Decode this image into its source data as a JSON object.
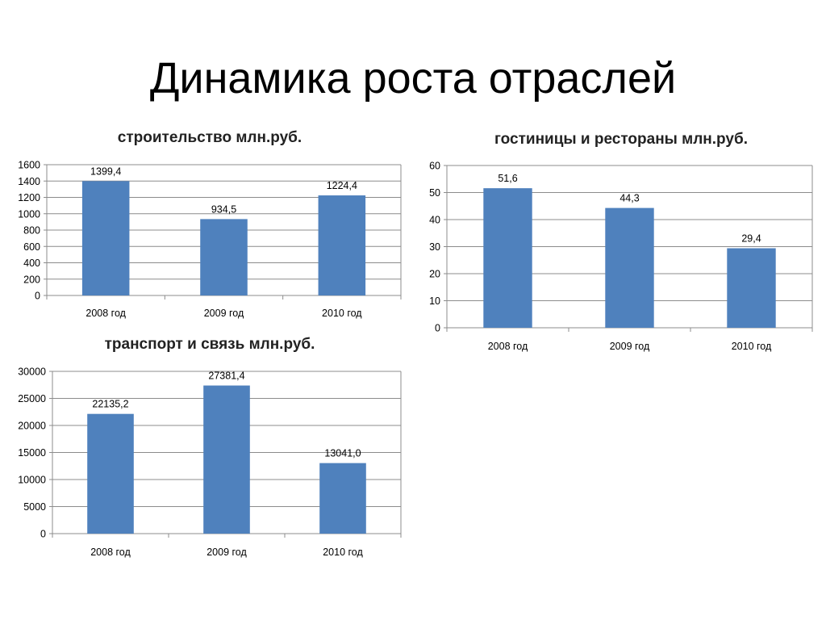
{
  "slide": {
    "title": "Динамика роста отраслей"
  },
  "chart_data": [
    {
      "type": "bar",
      "title": "строительство млн.руб.",
      "categories": [
        "2008 год",
        "2009 год",
        "2010 год"
      ],
      "values": [
        1399.4,
        934.5,
        1224.4
      ],
      "value_labels": [
        "1399,4",
        "934,5",
        "1224,4"
      ],
      "yticks": [
        "0",
        "200",
        "400",
        "600",
        "800",
        "1000",
        "1200",
        "1400",
        "1600"
      ],
      "ylim": [
        0,
        1600
      ],
      "grid": true,
      "bar_color": "#4f81bd"
    },
    {
      "type": "bar",
      "title": "гостиницы и рестораны млн.руб.",
      "categories": [
        "2008 год",
        "2009 год",
        "2010 год"
      ],
      "values": [
        51.6,
        44.3,
        29.4
      ],
      "value_labels": [
        "51,6",
        "44,3",
        "29,4"
      ],
      "yticks": [
        "0",
        "10",
        "20",
        "30",
        "40",
        "50",
        "60"
      ],
      "ylim": [
        0,
        60
      ],
      "grid": true,
      "bar_color": "#4f81bd"
    },
    {
      "type": "bar",
      "title": "транспорт и связь млн.руб.",
      "categories": [
        "2008 год",
        "2009 год",
        "2010 год"
      ],
      "values": [
        22135.2,
        27381.4,
        13041.0
      ],
      "value_labels": [
        "22135,2",
        "27381,4",
        "13041,0"
      ],
      "yticks": [
        "0",
        "5000",
        "10000",
        "15000",
        "20000",
        "25000",
        "30000"
      ],
      "ylim": [
        0,
        30000
      ],
      "grid": true,
      "bar_color": "#4f81bd"
    }
  ]
}
